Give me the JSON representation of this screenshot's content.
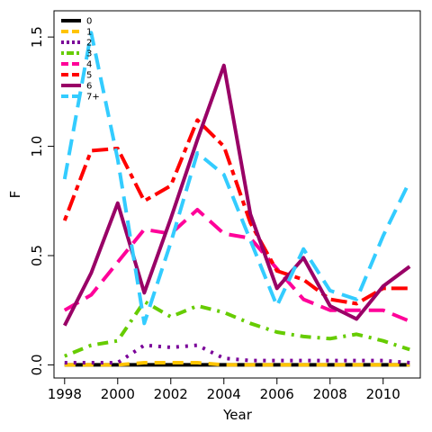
{
  "chart_data": {
    "type": "line",
    "title": "",
    "xlabel": "Year",
    "ylabel": "F",
    "xlim": [
      1997.6,
      2011.4
    ],
    "ylim": [
      -0.06,
      1.62
    ],
    "x_ticks": [
      "1998",
      "2000",
      "2002",
      "2004",
      "2006",
      "2008",
      "2010"
    ],
    "y_ticks": [
      "0.0",
      "0.5",
      "1.0",
      "1.5"
    ],
    "legend_position": "top-left",
    "x": [
      1998,
      1999,
      2000,
      2001,
      2002,
      2003,
      2004,
      2005,
      2006,
      2007,
      2008,
      2009,
      2010,
      2011
    ],
    "series": [
      {
        "name": "0",
        "color": "#000000",
        "dash": "solid",
        "values": [
          0.0,
          0.0,
          0.0,
          0.0,
          0.0,
          0.0,
          0.0,
          0.0,
          0.0,
          0.0,
          0.0,
          0.0,
          0.0,
          0.0
        ]
      },
      {
        "name": "1",
        "color": "#ffc400",
        "dash": "dashed",
        "values": [
          0.0,
          0.0,
          0.0,
          0.01,
          0.01,
          0.01,
          0.0,
          0.0,
          0.0,
          0.0,
          0.0,
          0.0,
          0.0,
          0.0
        ]
      },
      {
        "name": "2",
        "color": "#7a0099",
        "dash": "dotted",
        "values": [
          0.01,
          0.01,
          0.01,
          0.09,
          0.08,
          0.09,
          0.03,
          0.02,
          0.02,
          0.02,
          0.02,
          0.02,
          0.02,
          0.01
        ]
      },
      {
        "name": "3",
        "color": "#66cc00",
        "dash": "dotdash",
        "values": [
          0.04,
          0.09,
          0.11,
          0.29,
          0.22,
          0.27,
          0.24,
          0.19,
          0.15,
          0.13,
          0.12,
          0.14,
          0.11,
          0.07
        ]
      },
      {
        "name": "4",
        "color": "#ff0099",
        "dash": "longdash",
        "values": [
          0.25,
          0.32,
          0.47,
          0.62,
          0.6,
          0.71,
          0.6,
          0.58,
          0.44,
          0.3,
          0.25,
          0.25,
          0.25,
          0.2
        ]
      },
      {
        "name": "5",
        "color": "#ff0000",
        "dash": "twodash",
        "values": [
          0.66,
          0.98,
          0.99,
          0.75,
          0.82,
          1.12,
          1.0,
          0.65,
          0.43,
          0.39,
          0.3,
          0.28,
          0.35,
          0.35
        ]
      },
      {
        "name": "6",
        "color": "#990066",
        "dash": "solid",
        "values": [
          0.18,
          0.42,
          0.74,
          0.33,
          0.67,
          1.03,
          1.37,
          0.69,
          0.35,
          0.49,
          0.27,
          0.21,
          0.36,
          0.45
        ]
      },
      {
        "name": "7+",
        "color": "#33ccff",
        "dash": "longdash",
        "values": [
          0.85,
          1.52,
          0.94,
          0.19,
          0.56,
          0.97,
          0.87,
          0.57,
          0.27,
          0.53,
          0.34,
          0.3,
          0.59,
          0.84
        ]
      }
    ]
  }
}
